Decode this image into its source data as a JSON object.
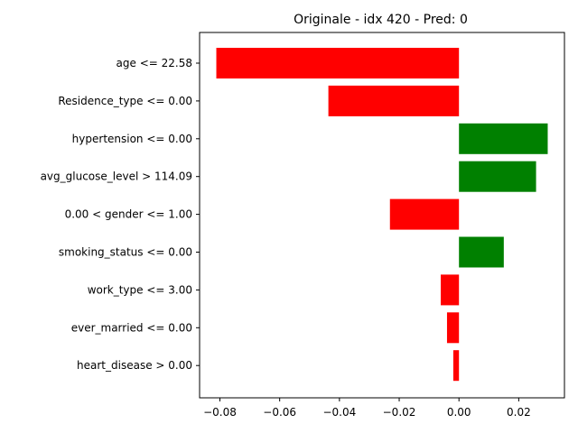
{
  "chart_data": {
    "type": "bar",
    "orientation": "horizontal",
    "title": "Originale - idx 420 - Pred: 0",
    "xlabel": "",
    "ylabel": "",
    "xlim": [
      -0.0868,
      0.0353
    ],
    "xticks": [
      -0.08,
      -0.06,
      -0.04,
      -0.02,
      0.0,
      0.02
    ],
    "xtick_labels": [
      "−0.08",
      "−0.06",
      "−0.04",
      "−0.02",
      "0.00",
      "0.02"
    ],
    "grid": false,
    "categories": [
      "age <= 22.58",
      "Residence_type <= 0.00",
      "hypertension <= 0.00",
      "avg_glucose_level > 114.09",
      "0.00 < gender <= 1.00",
      "smoking_status <= 0.00",
      "work_type <= 3.00",
      "ever_married <= 0.00",
      "heart_disease > 0.00"
    ],
    "values": [
      -0.0812,
      -0.0437,
      0.0297,
      0.0258,
      -0.0231,
      0.015,
      -0.0061,
      -0.004,
      -0.0019
    ],
    "colors": {
      "positive": "#008000",
      "negative": "#ff0000"
    }
  }
}
